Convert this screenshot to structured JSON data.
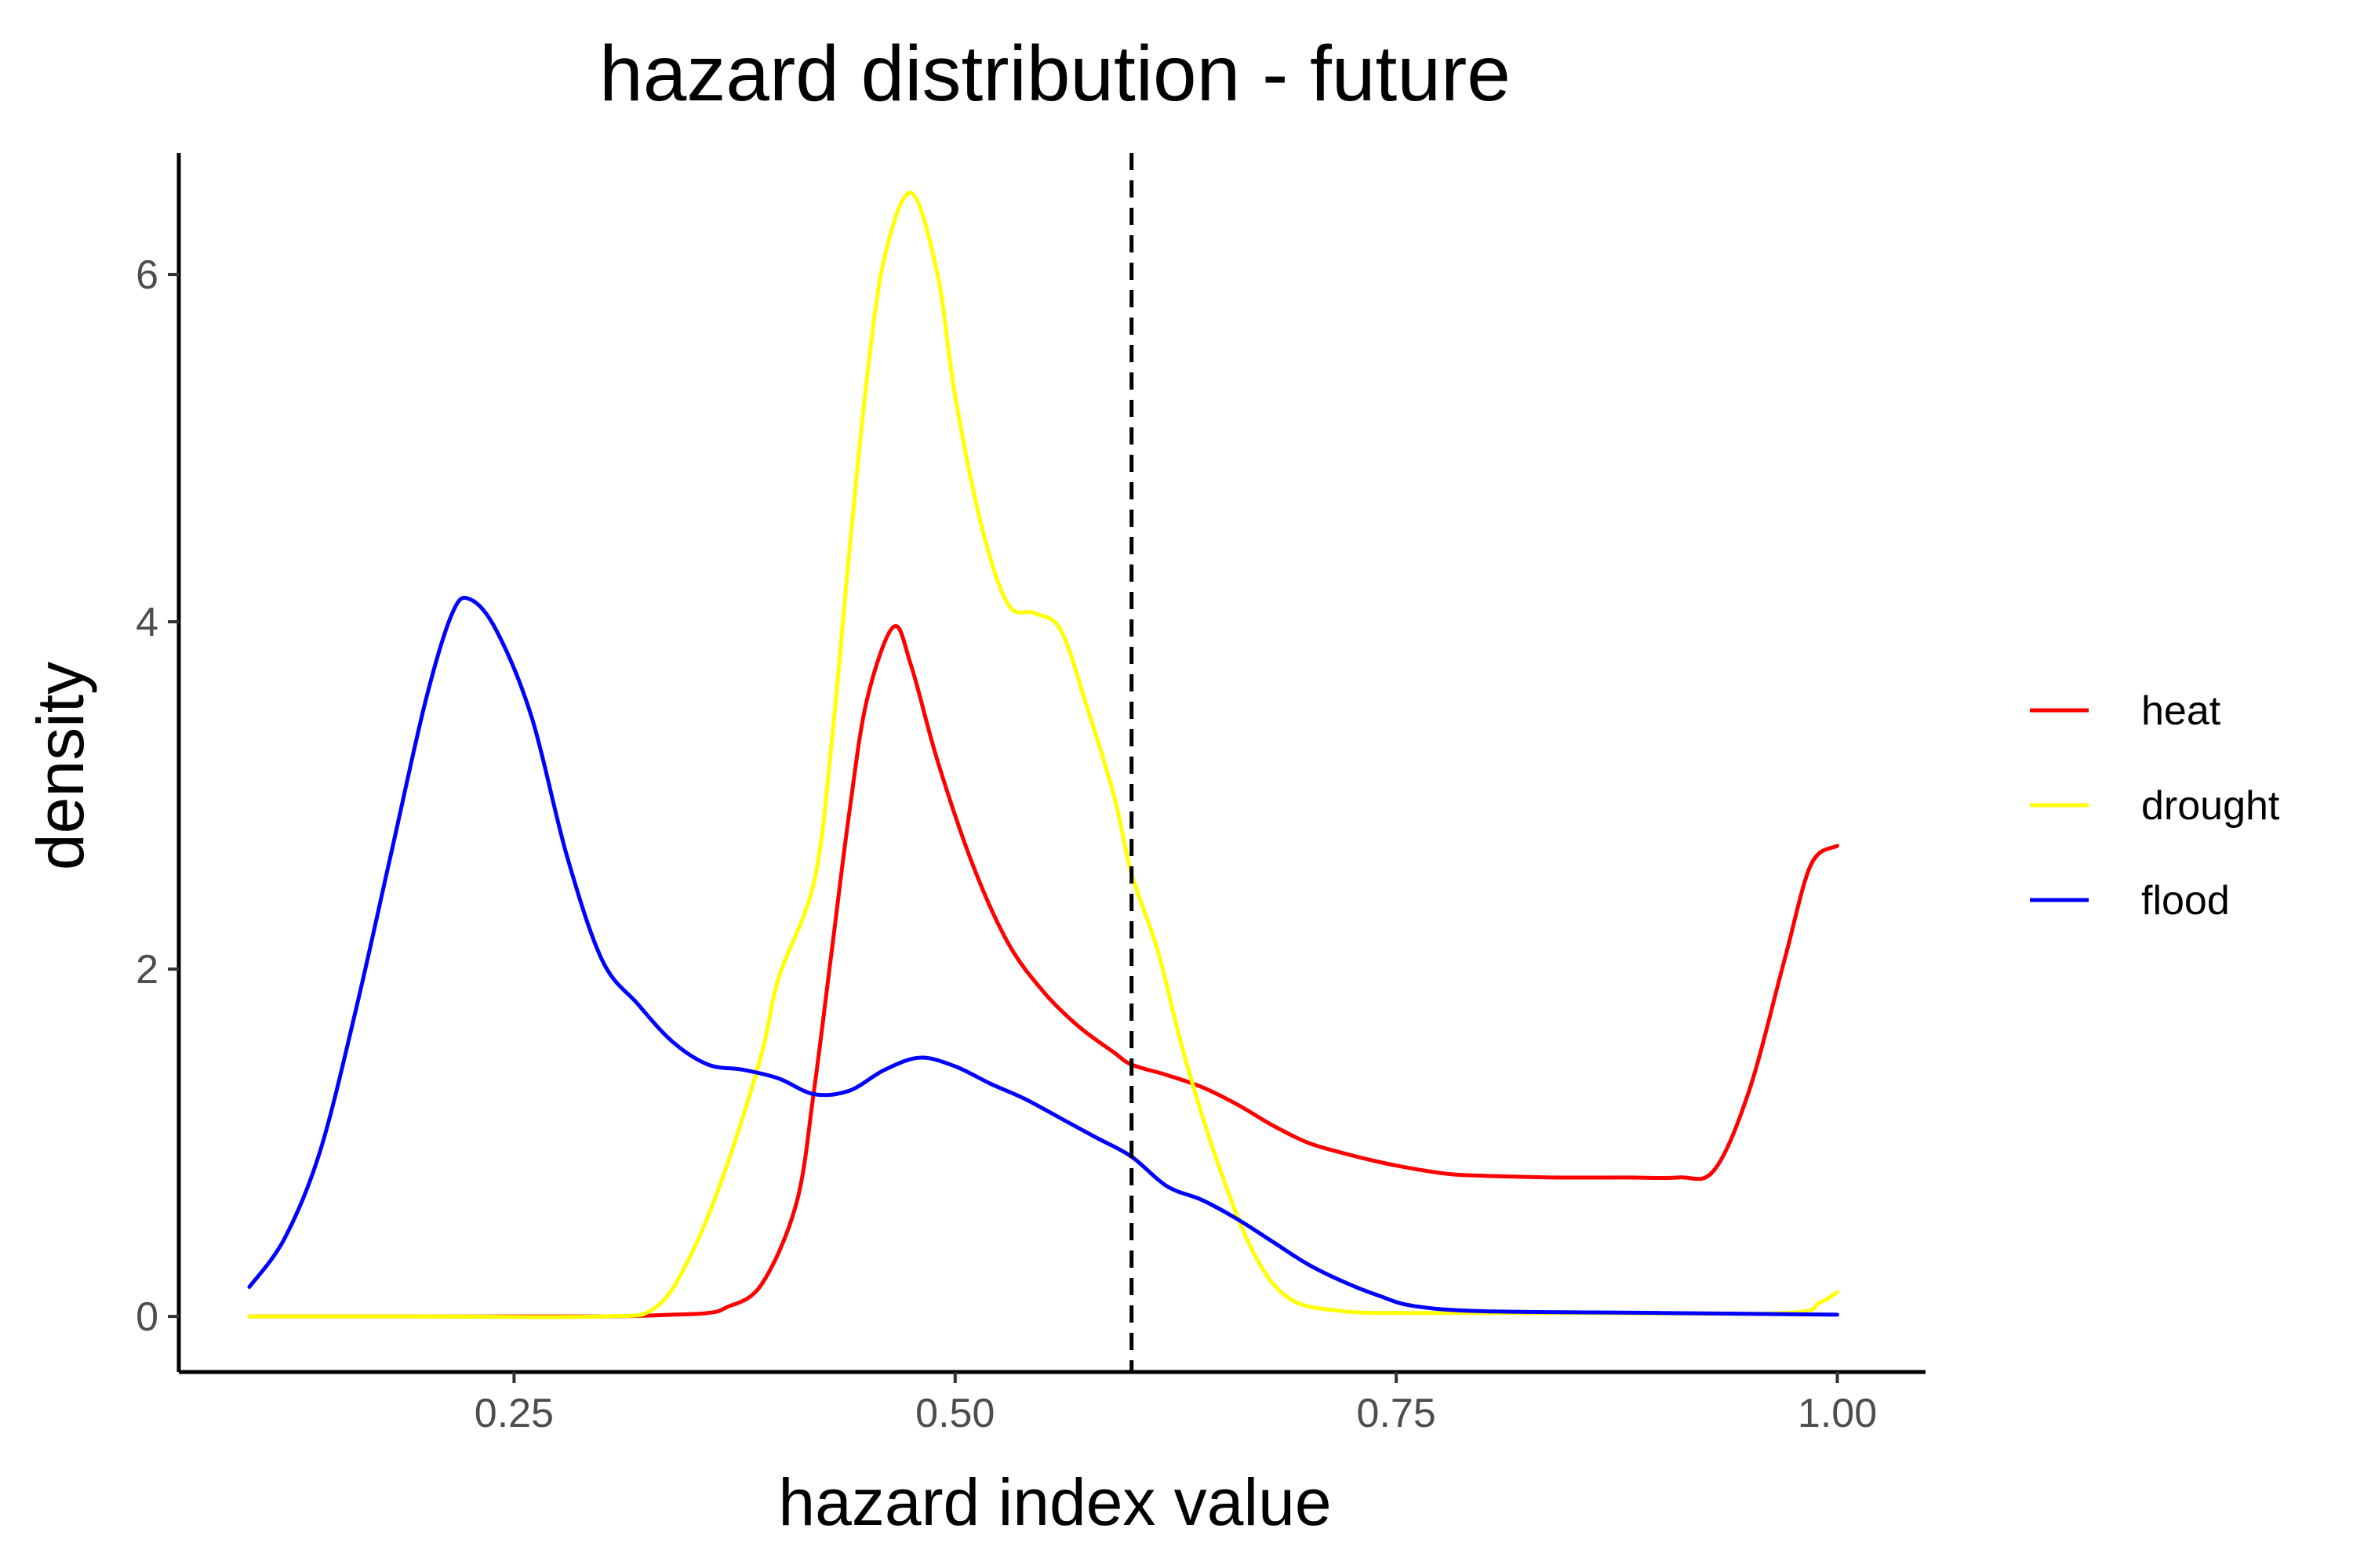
{
  "chart_data": {
    "type": "line",
    "title": "hazard distribution - future",
    "xlabel": "hazard index value",
    "ylabel": "density",
    "xlim": [
      0.06,
      1.05
    ],
    "ylim": [
      -0.32,
      6.7
    ],
    "xticks": [
      {
        "value": 0.25,
        "label": "0.25"
      },
      {
        "value": 0.5,
        "label": "0.50"
      },
      {
        "value": 0.75,
        "label": "0.75"
      },
      {
        "value": 1.0,
        "label": "1.00"
      }
    ],
    "yticks": [
      {
        "value": 0,
        "label": "0"
      },
      {
        "value": 2,
        "label": "2"
      },
      {
        "value": 4,
        "label": "4"
      },
      {
        "value": 6,
        "label": "6"
      }
    ],
    "grid": false,
    "legend_position": "right",
    "reference_line": {
      "x": 0.6,
      "style": "dashed",
      "color": "#000000"
    },
    "series": [
      {
        "name": "heat",
        "color": "#ff0000",
        "points": [
          [
            0.1,
            0.0
          ],
          [
            0.2,
            0.0
          ],
          [
            0.3,
            0.0
          ],
          [
            0.34,
            0.01
          ],
          [
            0.36,
            0.02
          ],
          [
            0.37,
            0.05
          ],
          [
            0.39,
            0.18
          ],
          [
            0.41,
            0.65
          ],
          [
            0.42,
            1.3
          ],
          [
            0.43,
            2.1
          ],
          [
            0.44,
            2.9
          ],
          [
            0.45,
            3.55
          ],
          [
            0.465,
            3.97
          ],
          [
            0.475,
            3.75
          ],
          [
            0.49,
            3.2
          ],
          [
            0.51,
            2.6
          ],
          [
            0.53,
            2.15
          ],
          [
            0.55,
            1.87
          ],
          [
            0.57,
            1.67
          ],
          [
            0.59,
            1.52
          ],
          [
            0.6,
            1.45
          ],
          [
            0.62,
            1.39
          ],
          [
            0.64,
            1.32
          ],
          [
            0.66,
            1.22
          ],
          [
            0.68,
            1.1
          ],
          [
            0.7,
            1.0
          ],
          [
            0.72,
            0.94
          ],
          [
            0.74,
            0.89
          ],
          [
            0.76,
            0.85
          ],
          [
            0.78,
            0.82
          ],
          [
            0.8,
            0.81
          ],
          [
            0.84,
            0.8
          ],
          [
            0.88,
            0.8
          ],
          [
            0.91,
            0.8
          ],
          [
            0.93,
            0.84
          ],
          [
            0.95,
            1.3
          ],
          [
            0.97,
            2.05
          ],
          [
            0.985,
            2.6
          ],
          [
            1.0,
            2.71
          ]
        ]
      },
      {
        "name": "drought",
        "color": "#ffff00",
        "points": [
          [
            0.1,
            0.0
          ],
          [
            0.2,
            0.0
          ],
          [
            0.3,
            0.0
          ],
          [
            0.33,
            0.05
          ],
          [
            0.35,
            0.35
          ],
          [
            0.37,
            0.85
          ],
          [
            0.39,
            1.5
          ],
          [
            0.4,
            1.95
          ],
          [
            0.42,
            2.5
          ],
          [
            0.43,
            3.3
          ],
          [
            0.44,
            4.4
          ],
          [
            0.45,
            5.4
          ],
          [
            0.46,
            6.1
          ],
          [
            0.475,
            6.47
          ],
          [
            0.49,
            6.0
          ],
          [
            0.5,
            5.3
          ],
          [
            0.515,
            4.55
          ],
          [
            0.53,
            4.1
          ],
          [
            0.545,
            4.05
          ],
          [
            0.56,
            3.95
          ],
          [
            0.575,
            3.5
          ],
          [
            0.59,
            3.0
          ],
          [
            0.6,
            2.55
          ],
          [
            0.615,
            2.1
          ],
          [
            0.63,
            1.5
          ],
          [
            0.65,
            0.85
          ],
          [
            0.67,
            0.35
          ],
          [
            0.69,
            0.1
          ],
          [
            0.72,
            0.03
          ],
          [
            0.76,
            0.02
          ],
          [
            0.85,
            0.02
          ],
          [
            0.97,
            0.02
          ],
          [
            0.99,
            0.08
          ],
          [
            1.0,
            0.14
          ]
        ]
      },
      {
        "name": "flood",
        "color": "#0000ff",
        "points": [
          [
            0.1,
            0.17
          ],
          [
            0.12,
            0.45
          ],
          [
            0.14,
            0.95
          ],
          [
            0.16,
            1.75
          ],
          [
            0.18,
            2.65
          ],
          [
            0.2,
            3.55
          ],
          [
            0.215,
            4.05
          ],
          [
            0.225,
            4.13
          ],
          [
            0.24,
            3.95
          ],
          [
            0.26,
            3.45
          ],
          [
            0.28,
            2.65
          ],
          [
            0.3,
            2.05
          ],
          [
            0.32,
            1.8
          ],
          [
            0.34,
            1.58
          ],
          [
            0.36,
            1.45
          ],
          [
            0.38,
            1.42
          ],
          [
            0.4,
            1.37
          ],
          [
            0.42,
            1.28
          ],
          [
            0.44,
            1.3
          ],
          [
            0.46,
            1.42
          ],
          [
            0.48,
            1.49
          ],
          [
            0.5,
            1.44
          ],
          [
            0.52,
            1.34
          ],
          [
            0.54,
            1.25
          ],
          [
            0.56,
            1.14
          ],
          [
            0.58,
            1.03
          ],
          [
            0.6,
            0.92
          ],
          [
            0.62,
            0.75
          ],
          [
            0.64,
            0.67
          ],
          [
            0.66,
            0.56
          ],
          [
            0.68,
            0.43
          ],
          [
            0.7,
            0.3
          ],
          [
            0.72,
            0.2
          ],
          [
            0.74,
            0.12
          ],
          [
            0.76,
            0.06
          ],
          [
            0.8,
            0.03
          ],
          [
            0.9,
            0.02
          ],
          [
            1.0,
            0.01
          ]
        ]
      }
    ]
  }
}
